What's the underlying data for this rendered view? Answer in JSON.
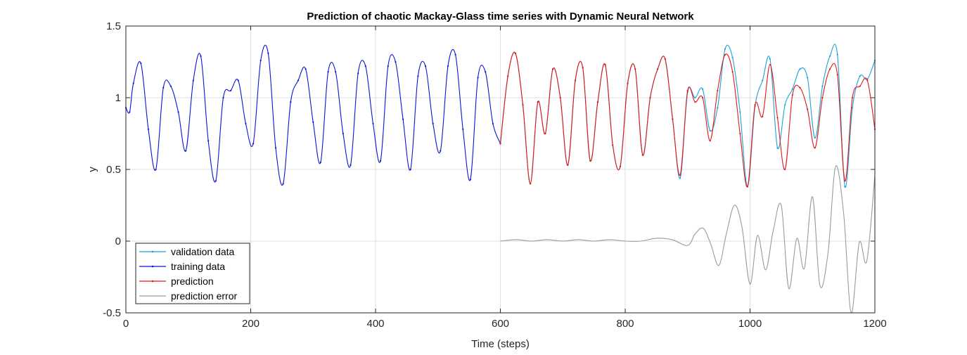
{
  "chart_data": {
    "type": "line",
    "title": "Prediction of chaotic Mackay-Glass time series with Dynamic Neural Network",
    "xlabel": "Time (steps)",
    "ylabel": "y",
    "xlim": [
      0,
      1200
    ],
    "ylim": [
      -0.5,
      1.5
    ],
    "xticks": [
      0,
      200,
      400,
      600,
      800,
      1000,
      1200
    ],
    "yticks": [
      -0.5,
      0,
      0.5,
      1,
      1.5
    ],
    "xtick_labels": [
      "0",
      "200",
      "400",
      "600",
      "800",
      "1000",
      "1200"
    ],
    "ytick_labels": [
      "-0.5",
      "0",
      "0.5",
      "1",
      "1.5"
    ],
    "grid": true,
    "legend_position": "bottom-left",
    "series": [
      {
        "name": "validation data",
        "color": "#1ea0d8",
        "marker": "dot",
        "x": [
          600,
          612,
          624,
          636,
          648,
          660,
          672,
          684,
          696,
          708,
          720,
          732,
          744,
          756,
          768,
          780,
          792,
          804,
          816,
          828,
          840,
          852,
          864,
          876,
          888,
          900,
          912,
          924,
          936,
          948,
          960,
          972,
          984,
          996,
          1008,
          1020,
          1032,
          1044,
          1056,
          1068,
          1080,
          1092,
          1104,
          1116,
          1128,
          1140,
          1152,
          1164,
          1176,
          1188,
          1200
        ],
        "y": [
          0.68,
          1.15,
          1.31,
          0.95,
          0.4,
          0.97,
          0.75,
          1.2,
          1.0,
          0.53,
          1.12,
          1.21,
          0.56,
          0.97,
          1.23,
          0.67,
          0.52,
          1.1,
          1.2,
          0.6,
          1.0,
          1.2,
          1.27,
          0.85,
          0.44,
          1.04,
          1.0,
          1.06,
          0.77,
          0.93,
          1.34,
          1.28,
          0.9,
          0.38,
          0.94,
          1.12,
          1.27,
          0.65,
          0.95,
          1.06,
          1.2,
          1.14,
          0.72,
          1.08,
          1.29,
          1.3,
          0.38,
          0.93,
          1.15,
          1.13,
          1.26
        ]
      },
      {
        "name": "training data",
        "color": "#0a14d6",
        "marker": "dot",
        "x": [
          0,
          6,
          12,
          24,
          36,
          48,
          60,
          72,
          84,
          96,
          108,
          120,
          132,
          144,
          156,
          168,
          180,
          192,
          204,
          216,
          228,
          240,
          252,
          264,
          276,
          288,
          300,
          312,
          324,
          336,
          348,
          360,
          372,
          384,
          396,
          408,
          420,
          432,
          444,
          456,
          468,
          480,
          492,
          504,
          516,
          528,
          540,
          552,
          564,
          576,
          588,
          600
        ],
        "y": [
          0.93,
          0.9,
          1.1,
          1.24,
          0.78,
          0.5,
          1.07,
          1.08,
          0.9,
          0.63,
          1.12,
          1.29,
          0.7,
          0.42,
          1.0,
          1.05,
          1.12,
          0.82,
          0.68,
          1.26,
          1.31,
          0.65,
          0.4,
          0.97,
          1.12,
          1.2,
          0.83,
          0.55,
          1.18,
          1.18,
          0.75,
          0.53,
          1.17,
          1.22,
          0.82,
          0.56,
          1.22,
          1.25,
          0.85,
          0.5,
          1.15,
          1.22,
          0.82,
          0.63,
          1.22,
          1.3,
          0.78,
          0.43,
          1.14,
          1.18,
          0.82,
          0.68
        ]
      },
      {
        "name": "prediction",
        "color": "#e01818",
        "marker": "dot",
        "x": [
          600,
          612,
          624,
          636,
          648,
          660,
          672,
          684,
          696,
          708,
          720,
          732,
          744,
          756,
          768,
          780,
          792,
          804,
          816,
          828,
          840,
          852,
          864,
          876,
          888,
          900,
          912,
          924,
          936,
          948,
          960,
          972,
          984,
          996,
          1008,
          1020,
          1032,
          1044,
          1056,
          1068,
          1080,
          1092,
          1104,
          1116,
          1128,
          1140,
          1152,
          1164,
          1176,
          1188,
          1200
        ],
        "y": [
          0.68,
          1.15,
          1.31,
          0.95,
          0.4,
          0.97,
          0.75,
          1.2,
          1.0,
          0.53,
          1.12,
          1.21,
          0.56,
          0.97,
          1.23,
          0.67,
          0.52,
          1.1,
          1.2,
          0.6,
          1.0,
          1.2,
          1.27,
          0.85,
          0.46,
          1.05,
          0.97,
          1.0,
          0.7,
          1.05,
          1.3,
          1.18,
          0.75,
          0.38,
          0.95,
          0.87,
          1.23,
          0.86,
          0.5,
          1.02,
          1.07,
          0.92,
          0.65,
          1.0,
          1.2,
          1.16,
          0.42,
          1.0,
          1.08,
          1.12,
          0.78
        ]
      },
      {
        "name": "prediction error",
        "color": "#9a9a9a",
        "marker": "none",
        "x": [
          600,
          625,
          650,
          675,
          700,
          725,
          750,
          775,
          800,
          825,
          850,
          875,
          900,
          912,
          925,
          937,
          950,
          962,
          975,
          987,
          1000,
          1012,
          1025,
          1037,
          1050,
          1062,
          1075,
          1087,
          1100,
          1112,
          1125,
          1137,
          1150,
          1162,
          1175,
          1187,
          1200
        ],
        "y": [
          0.0,
          0.01,
          0.0,
          0.01,
          0.0,
          0.01,
          0.0,
          0.01,
          0.0,
          0.0,
          0.02,
          0.01,
          -0.03,
          0.05,
          0.09,
          -0.02,
          -0.17,
          0.05,
          0.25,
          0.1,
          -0.3,
          0.04,
          -0.2,
          0.07,
          0.25,
          -0.33,
          0.02,
          -0.19,
          0.31,
          -0.31,
          -0.08,
          0.52,
          0.19,
          -0.5,
          -0.01,
          -0.14,
          0.46
        ]
      }
    ]
  }
}
